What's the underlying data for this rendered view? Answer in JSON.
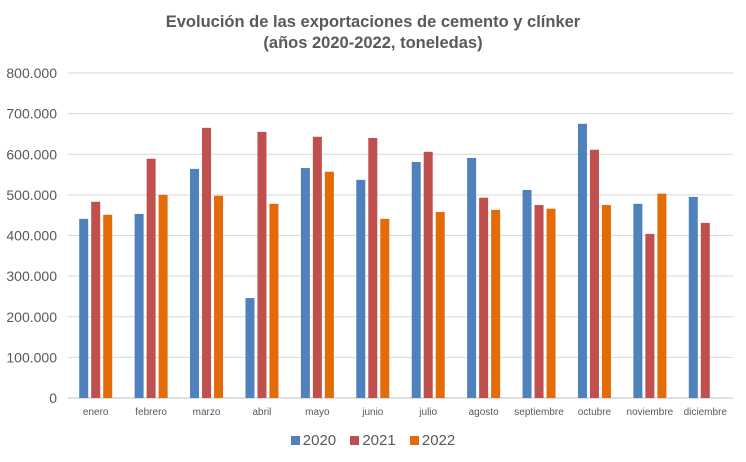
{
  "chart_data": {
    "type": "bar",
    "title": "Evolución de las exportaciones de cemento y clínker",
    "subtitle": "(años 2020-2022, toneledas)",
    "xlabel": "",
    "ylabel": "",
    "ylim": [
      0,
      800000
    ],
    "yticks": [
      0,
      100000,
      200000,
      300000,
      400000,
      500000,
      600000,
      700000,
      800000
    ],
    "ytick_labels": [
      "0",
      "100.000",
      "200.000",
      "300.000",
      "400.000",
      "500.000",
      "600.000",
      "700.000",
      "800.000"
    ],
    "grid": true,
    "legend_position": "bottom",
    "categories": [
      "enero",
      "febrero",
      "marzo",
      "abril",
      "mayo",
      "junio",
      "julio",
      "agosto",
      "septiembre",
      "octubre",
      "noviembre",
      "diciembre"
    ],
    "series": [
      {
        "name": "2020",
        "color": "#4f81bd",
        "values": [
          441000,
          453000,
          564000,
          246000,
          566000,
          537000,
          581000,
          591000,
          512000,
          675000,
          478000,
          495000
        ]
      },
      {
        "name": "2021",
        "color": "#c0504d",
        "values": [
          483000,
          589000,
          665000,
          655000,
          643000,
          640000,
          606000,
          493000,
          475000,
          611000,
          404000,
          431000
        ]
      },
      {
        "name": "2022",
        "color": "#e36c09",
        "values": [
          451000,
          500000,
          498000,
          478000,
          557000,
          441000,
          458000,
          463000,
          466000,
          475000,
          503000,
          null
        ]
      }
    ]
  }
}
